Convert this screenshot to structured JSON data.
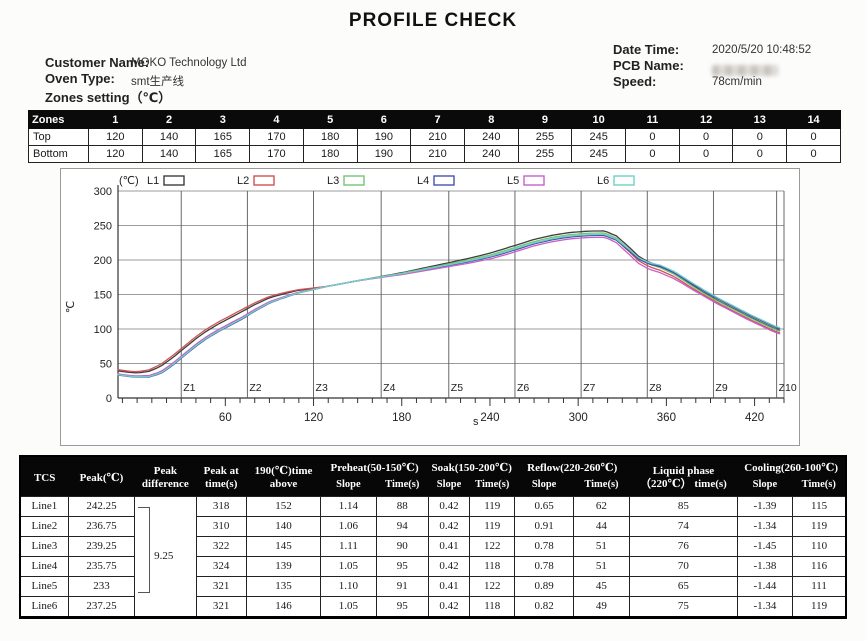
{
  "page": {
    "title": "PROFILE CHECK"
  },
  "header": {
    "customer_label": "Customer Name:",
    "customer_value": "MOKO Technology Ltd",
    "oven_label": "Oven Type:",
    "oven_value": "smt生产线",
    "zones_setting_label": "Zones setting（℃）",
    "datetime_label": "Date Time:",
    "datetime_value": "2020/5/20 10:48:52",
    "pcb_label": "PCB Name:",
    "pcb_value_redacted": true,
    "speed_label": "Speed:",
    "speed_value": "78cm/min"
  },
  "zones_table": {
    "header": [
      "Zones",
      "1",
      "2",
      "3",
      "4",
      "5",
      "6",
      "7",
      "8",
      "9",
      "10",
      "11",
      "12",
      "13",
      "14"
    ],
    "rows": [
      {
        "label": "Top",
        "values": [
          120,
          140,
          165,
          170,
          180,
          190,
          210,
          240,
          255,
          245,
          0,
          0,
          0,
          0
        ]
      },
      {
        "label": "Bottom",
        "values": [
          120,
          140,
          165,
          170,
          180,
          190,
          210,
          240,
          255,
          245,
          0,
          0,
          0,
          0
        ]
      }
    ]
  },
  "chart_data": {
    "type": "line",
    "title": "",
    "y_unit_label": "(℃)",
    "ylabel": "℃",
    "xlabel": "s",
    "ylim": [
      0,
      300
    ],
    "yticks": [
      0,
      50,
      100,
      150,
      200,
      250,
      300
    ],
    "xlim": [
      -13,
      440
    ],
    "xticks": [
      60,
      120,
      180,
      240,
      300,
      360,
      420
    ],
    "minor_tick_step": 10,
    "grid": true,
    "legend_position": "top",
    "zone_markers": [
      {
        "label": "Z1",
        "t": 30
      },
      {
        "label": "Z2",
        "t": 75
      },
      {
        "label": "Z3",
        "t": 120
      },
      {
        "label": "Z4",
        "t": 166
      },
      {
        "label": "Z5",
        "t": 212
      },
      {
        "label": "Z6",
        "t": 257
      },
      {
        "label": "Z7",
        "t": 302
      },
      {
        "label": "Z8",
        "t": 347
      },
      {
        "label": "Z9",
        "t": 392
      },
      {
        "label": "Z10",
        "t": 435
      }
    ],
    "series": [
      {
        "name": "L1",
        "color": "#3d3d3d",
        "peak": 242.25,
        "peak_time": 318,
        "early_offset": 6,
        "late_offset": 1
      },
      {
        "name": "L2",
        "color": "#cf5352",
        "peak": 236.75,
        "peak_time": 310,
        "early_offset": 9,
        "late_offset": -2.5
      },
      {
        "name": "L3",
        "color": "#74c476",
        "peak": 239.25,
        "peak_time": 322,
        "early_offset": -3,
        "late_offset": 0
      },
      {
        "name": "L4",
        "color": "#4453b0",
        "peak": 235.75,
        "peak_time": 324,
        "early_offset": -5,
        "late_offset": 3.5
      },
      {
        "name": "L5",
        "color": "#c95fc9",
        "peak": 233,
        "peak_time": 321,
        "early_offset": -2,
        "late_offset": -4
      },
      {
        "name": "L6",
        "color": "#6fcfc4",
        "peak": 237.25,
        "peak_time": 321,
        "early_offset": -4,
        "late_offset": 5
      }
    ],
    "base_curve": [
      [
        -13,
        36
      ],
      [
        -6,
        34
      ],
      [
        0,
        33
      ],
      [
        8,
        34
      ],
      [
        16,
        40
      ],
      [
        24,
        52
      ],
      [
        32,
        66
      ],
      [
        40,
        80
      ],
      [
        48,
        92
      ],
      [
        56,
        102
      ],
      [
        64,
        111
      ],
      [
        72,
        120
      ],
      [
        80,
        130
      ],
      [
        90,
        141
      ],
      [
        100,
        148
      ],
      [
        110,
        154
      ],
      [
        120,
        158
      ],
      [
        135,
        164
      ],
      [
        150,
        170
      ],
      [
        165,
        176
      ],
      [
        180,
        182
      ],
      [
        195,
        189
      ],
      [
        210,
        196
      ],
      [
        225,
        203
      ],
      [
        240,
        211
      ],
      [
        255,
        221
      ],
      [
        270,
        231
      ],
      [
        282,
        237
      ],
      [
        294,
        241
      ],
      [
        306,
        243
      ],
      [
        318,
        243.5
      ],
      [
        326,
        236
      ],
      [
        334,
        221
      ],
      [
        341,
        206
      ],
      [
        348,
        197
      ],
      [
        356,
        191
      ],
      [
        366,
        180
      ],
      [
        376,
        165
      ],
      [
        386,
        151
      ],
      [
        396,
        139
      ],
      [
        406,
        128
      ],
      [
        416,
        117
      ],
      [
        426,
        107
      ],
      [
        433,
        100
      ],
      [
        437,
        97
      ]
    ]
  },
  "stats_table": {
    "headers": {
      "tcs": "TCS",
      "peak": "Peak(℃)",
      "peak_diff": "Peak difference",
      "peak_at": "Peak at time(s)",
      "t190": "190(℃)time above",
      "preheat": "Preheat(50-150℃)",
      "soak": "Soak(150-200℃)",
      "reflow": "Reflow(220-260℃)",
      "liquid": "Liquid phase （220℃） time(s)",
      "cooling": "Cooling(260-100℃)",
      "slope": "Slope",
      "time": "Time(s)"
    },
    "peak_difference": "9.25",
    "rows": [
      {
        "tcs": "Line1",
        "peak": "242.25",
        "peak_at": "318",
        "t190": "152",
        "pre_slope": "1.14",
        "pre_time": "88",
        "soak_slope": "0.42",
        "soak_time": "119",
        "ref_slope": "0.65",
        "ref_time": "62",
        "liquid": "85",
        "cool_slope": "-1.39",
        "cool_time": "115"
      },
      {
        "tcs": "Line2",
        "peak": "236.75",
        "peak_at": "310",
        "t190": "140",
        "pre_slope": "1.06",
        "pre_time": "94",
        "soak_slope": "0.42",
        "soak_time": "119",
        "ref_slope": "0.91",
        "ref_time": "44",
        "liquid": "74",
        "cool_slope": "-1.34",
        "cool_time": "119"
      },
      {
        "tcs": "Line3",
        "peak": "239.25",
        "peak_at": "322",
        "t190": "145",
        "pre_slope": "1.11",
        "pre_time": "90",
        "soak_slope": "0.41",
        "soak_time": "122",
        "ref_slope": "0.78",
        "ref_time": "51",
        "liquid": "76",
        "cool_slope": "-1.45",
        "cool_time": "110"
      },
      {
        "tcs": "Line4",
        "peak": "235.75",
        "peak_at": "324",
        "t190": "139",
        "pre_slope": "1.05",
        "pre_time": "95",
        "soak_slope": "0.42",
        "soak_time": "118",
        "ref_slope": "0.78",
        "ref_time": "51",
        "liquid": "70",
        "cool_slope": "-1.38",
        "cool_time": "116"
      },
      {
        "tcs": "Line5",
        "peak": "233",
        "peak_at": "321",
        "t190": "135",
        "pre_slope": "1.10",
        "pre_time": "91",
        "soak_slope": "0.41",
        "soak_time": "122",
        "ref_slope": "0.89",
        "ref_time": "45",
        "liquid": "65",
        "cool_slope": "-1.44",
        "cool_time": "111"
      },
      {
        "tcs": "Line6",
        "peak": "237.25",
        "peak_at": "321",
        "t190": "146",
        "pre_slope": "1.05",
        "pre_time": "95",
        "soak_slope": "0.42",
        "soak_time": "118",
        "ref_slope": "0.82",
        "ref_time": "49",
        "liquid": "75",
        "cool_slope": "-1.34",
        "cool_time": "119"
      }
    ]
  }
}
